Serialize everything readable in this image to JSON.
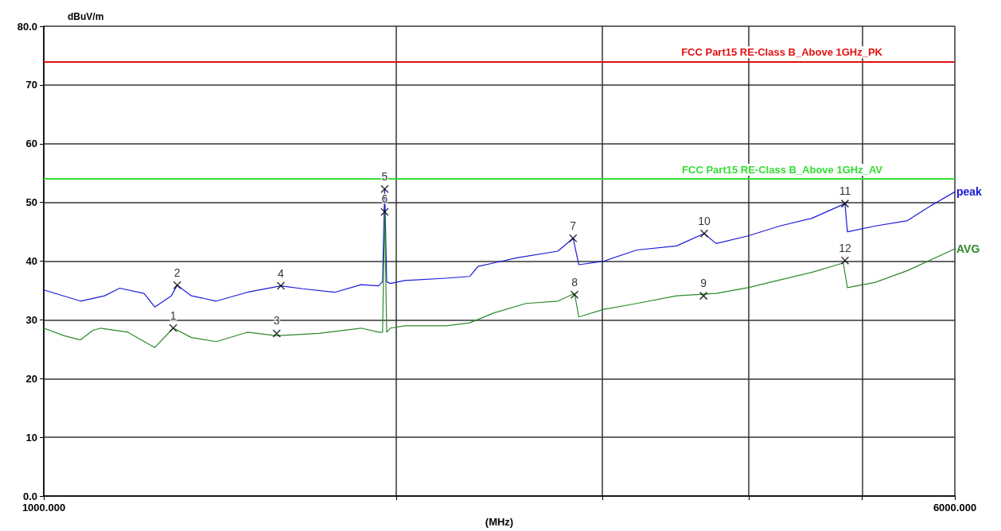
{
  "chart_data": {
    "type": "line",
    "ylabel": "dBuV/m",
    "xlabel": "(MHz)",
    "log": "x",
    "grid": true,
    "legend": false,
    "marker": "none",
    "line_style": "solid",
    "xlim": [
      1000,
      6000
    ],
    "xticks": [
      {
        "value": 1000,
        "label": "1000.000"
      },
      {
        "value": 2000,
        "label": null
      },
      {
        "value": 3000,
        "label": null
      },
      {
        "value": 4000,
        "label": null
      },
      {
        "value": 5000,
        "label": null
      },
      {
        "value": 6000,
        "label": "6000.000"
      }
    ],
    "ylim": [
      0,
      80
    ],
    "yticks": [
      {
        "value": 0,
        "label": "0.0"
      },
      10,
      20,
      30,
      40,
      50,
      60,
      70,
      {
        "value": 80,
        "label": "80.0"
      }
    ],
    "series": [
      {
        "name": "peak",
        "color": "#1a1ad6",
        "x": [
          1000,
          1075,
          1127,
          1161,
          1218,
          1244,
          1285,
          1300,
          1337,
          1404,
          1492,
          1594,
          1664,
          1772,
          1867,
          1932,
          1947,
          1955,
          1963,
          1977,
          2034,
          2206,
          2311,
          2349,
          2424,
          2540,
          2748,
          2832,
          2864,
          3008,
          3210,
          3471,
          3665,
          3752,
          3995,
          4254,
          4529,
          4834,
          4857,
          5133,
          5466,
          5730,
          6000
        ],
        "values": [
          35.1,
          33.2,
          34.1,
          35.4,
          34.5,
          32.2,
          34.1,
          35.9,
          34.1,
          33.2,
          34.7,
          35.8,
          35.3,
          34.7,
          36.0,
          35.8,
          36.5,
          52.3,
          36.5,
          36.2,
          36.7,
          37.1,
          37.4,
          39.1,
          39.7,
          40.6,
          41.7,
          43.9,
          39.4,
          40.0,
          41.9,
          42.6,
          44.7,
          43.0,
          44.3,
          46.0,
          47.3,
          49.8,
          45.0,
          46.0,
          46.9,
          49.5,
          51.8
        ]
      },
      {
        "name": "AVG",
        "color": "#2a8a2a",
        "x": [
          1000,
          1041,
          1075,
          1101,
          1118,
          1180,
          1244,
          1290,
          1337,
          1404,
          1492,
          1581,
          1718,
          1867,
          1932,
          1947,
          1955,
          1963,
          1977,
          2034,
          2206,
          2311,
          2424,
          2581,
          2748,
          2840,
          2864,
          3008,
          3210,
          3471,
          3752,
          3995,
          4254,
          4529,
          4818,
          4857,
          5133,
          5466,
          6000
        ],
        "values": [
          28.6,
          27.3,
          26.6,
          28.2,
          28.6,
          27.9,
          25.3,
          28.6,
          27.0,
          26.3,
          27.9,
          27.3,
          27.7,
          28.6,
          27.9,
          27.9,
          48.4,
          27.9,
          28.6,
          29.0,
          29.0,
          29.5,
          31.2,
          32.8,
          33.2,
          34.5,
          30.5,
          31.8,
          32.8,
          34.1,
          34.5,
          35.5,
          36.8,
          38.1,
          39.7,
          35.5,
          36.4,
          38.4,
          42.1
        ]
      }
    ],
    "ref_lines": [
      {
        "axis": "y",
        "value": 74,
        "label": "FCC Part15 RE-Class B_Above 1GHz_PK",
        "color": "#e01010"
      },
      {
        "axis": "y",
        "value": 54,
        "label": "FCC Part15 RE-Class B_Above 1GHz_AV",
        "color": "#33dd33"
      }
    ],
    "annotations": [
      {
        "text": "1",
        "x": 1290,
        "y": 28.6
      },
      {
        "text": "2",
        "x": 1300,
        "y": 35.9
      },
      {
        "text": "3",
        "x": 1581,
        "y": 27.7
      },
      {
        "text": "4",
        "x": 1594,
        "y": 35.8
      },
      {
        "text": "5",
        "x": 1955,
        "y": 52.3
      },
      {
        "text": "6",
        "x": 1955,
        "y": 48.4
      },
      {
        "text": "7",
        "x": 2832,
        "y": 43.9
      },
      {
        "text": "8",
        "x": 2840,
        "y": 34.3
      },
      {
        "text": "9",
        "x": 3660,
        "y": 34.1
      },
      {
        "text": "10",
        "x": 3665,
        "y": 44.7
      },
      {
        "text": "11",
        "x": 4834,
        "y": 49.8
      },
      {
        "text": "12",
        "x": 4834,
        "y": 40.1
      }
    ]
  }
}
